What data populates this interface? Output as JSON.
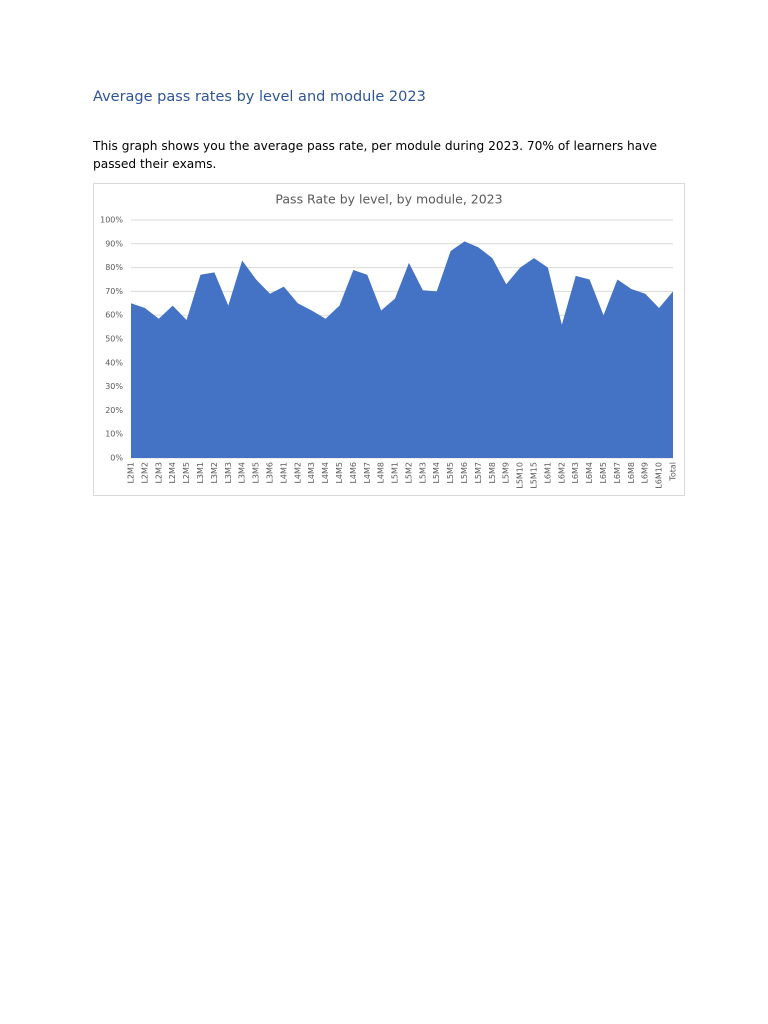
{
  "heading": "Average pass rates by level and module 2023",
  "paragraph": "This graph shows you the average pass rate, per module during 2023. 70% of learners have passed their exams.",
  "chart_data": {
    "type": "area",
    "title": "Pass Rate by level, by module, 2023",
    "categories": [
      "L2M1",
      "L2M2",
      "L2M3",
      "L2M4",
      "L2M5",
      "L3M1",
      "L3M2",
      "L3M3",
      "L3M4",
      "L3M5",
      "L3M6",
      "L4M1",
      "L4M2",
      "L4M3",
      "L4M4",
      "L4M5",
      "L4M6",
      "L4M7",
      "L4M8",
      "L5M1",
      "L5M2",
      "L5M3",
      "L5M4",
      "L5M5",
      "L5M6",
      "L5M7",
      "L5M8",
      "L5M9",
      "L5M10",
      "L5M15",
      "L6M1",
      "L6M2",
      "L6M3",
      "L6M4",
      "L6M5",
      "L6M7",
      "L6M8",
      "L6M9",
      "L6M10",
      "Total"
    ],
    "values": [
      65,
      63,
      58.5,
      64,
      58,
      77,
      78,
      64,
      83,
      75,
      69,
      72,
      65,
      62,
      58.5,
      64,
      79,
      77,
      62,
      67,
      82,
      70.5,
      70,
      87,
      91,
      88.5,
      84,
      73,
      80,
      84,
      80,
      56,
      76.5,
      75,
      60,
      75,
      71,
      69,
      63,
      70
    ],
    "color": "#4472c4",
    "ylim": [
      0,
      100
    ],
    "yticks": [
      {
        "value": 0,
        "label": "0%"
      },
      {
        "value": 10,
        "label": "10%"
      },
      {
        "value": 20,
        "label": "20%"
      },
      {
        "value": 30,
        "label": "30%"
      },
      {
        "value": 40,
        "label": "40%"
      },
      {
        "value": 50,
        "label": "50%"
      },
      {
        "value": 60,
        "label": "60%"
      },
      {
        "value": 70,
        "label": "70%"
      },
      {
        "value": 80,
        "label": "80%"
      },
      {
        "value": 90,
        "label": "90%"
      },
      {
        "value": 100,
        "label": "100%"
      }
    ],
    "grid": true
  }
}
